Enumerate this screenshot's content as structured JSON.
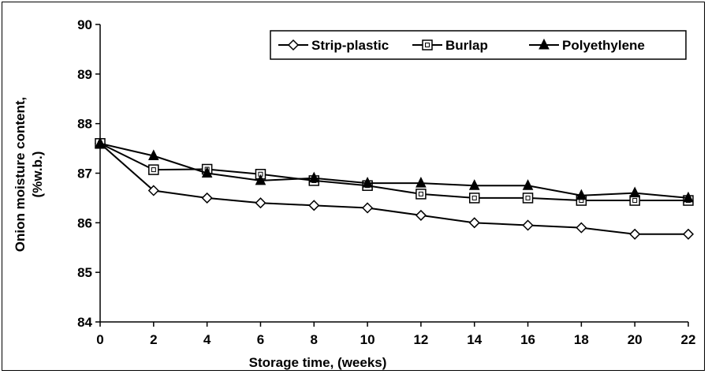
{
  "chart_data": {
    "type": "line",
    "xlabel": "Storage time,  (weeks)",
    "ylabel": "Onion moisture content,",
    "ylabel_unit": "(%w.b.)",
    "x": [
      0,
      2,
      4,
      6,
      8,
      10,
      12,
      14,
      16,
      18,
      20,
      22
    ],
    "xlim": [
      0,
      22
    ],
    "xticks": [
      0,
      2,
      4,
      6,
      8,
      10,
      12,
      14,
      16,
      18,
      20,
      22
    ],
    "ylim": [
      84,
      90
    ],
    "yticks": [
      84,
      85,
      86,
      87,
      88,
      89,
      90
    ],
    "grid": false,
    "legend_position": "top-right",
    "series": [
      {
        "name": "Strip-plastic",
        "marker": "diamond",
        "color": "#000000",
        "values": [
          87.6,
          86.65,
          86.5,
          86.4,
          86.35,
          86.3,
          86.15,
          86.0,
          85.95,
          85.9,
          85.77,
          85.77
        ]
      },
      {
        "name": "Burlap",
        "marker": "square",
        "color": "#000000",
        "values": [
          87.6,
          87.07,
          87.08,
          86.98,
          86.85,
          86.75,
          86.58,
          86.5,
          86.5,
          86.45,
          86.45,
          86.45
        ]
      },
      {
        "name": "Polyethylene",
        "marker": "triangle",
        "color": "#000000",
        "values": [
          87.6,
          87.35,
          87.0,
          86.85,
          86.9,
          86.8,
          86.8,
          86.75,
          86.75,
          86.55,
          86.6,
          86.5
        ]
      }
    ]
  }
}
